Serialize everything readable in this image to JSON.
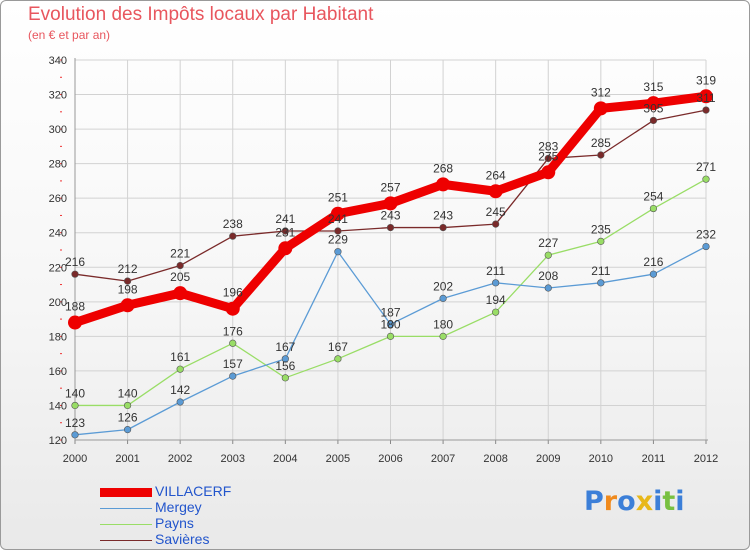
{
  "chart_data": {
    "type": "line",
    "title": "Evolution des Impôts locaux par Habitant",
    "subtitle": "(en € et par an)",
    "categories": [
      "2000",
      "2001",
      "2002",
      "2003",
      "2004",
      "2005",
      "2006",
      "2007",
      "2008",
      "2009",
      "2010",
      "2011",
      "2012"
    ],
    "ylim": [
      120,
      340
    ],
    "yticks": [
      120,
      140,
      160,
      180,
      200,
      220,
      240,
      260,
      280,
      300,
      320,
      340
    ],
    "grid": true,
    "series": [
      {
        "name": "VILLACERF",
        "color": "#ee0000",
        "values": [
          188,
          198,
          205,
          196,
          231,
          251,
          257,
          268,
          264,
          275,
          312,
          315,
          319
        ]
      },
      {
        "name": "Mergey",
        "color": "#5b9bd5",
        "values": [
          123,
          126,
          142,
          157,
          167,
          229,
          187,
          202,
          211,
          208,
          211,
          216,
          232
        ]
      },
      {
        "name": "Payns",
        "color": "#99dd66",
        "values": [
          140,
          140,
          161,
          176,
          156,
          167,
          180,
          180,
          194,
          227,
          235,
          254,
          271
        ]
      },
      {
        "name": "Savières",
        "color": "#7a2a2a",
        "values": [
          216,
          212,
          221,
          238,
          241,
          241,
          243,
          243,
          245,
          283,
          285,
          305,
          311
        ]
      }
    ]
  },
  "logo": {
    "letters": [
      "P",
      "r",
      "o",
      "x",
      "i",
      "t",
      "i"
    ],
    "colors": [
      "#3c7fd8",
      "#f08a1d",
      "#3c7fd8",
      "#e8b81a",
      "#3c7fd8",
      "#78c040",
      "#3c7fd8"
    ]
  }
}
